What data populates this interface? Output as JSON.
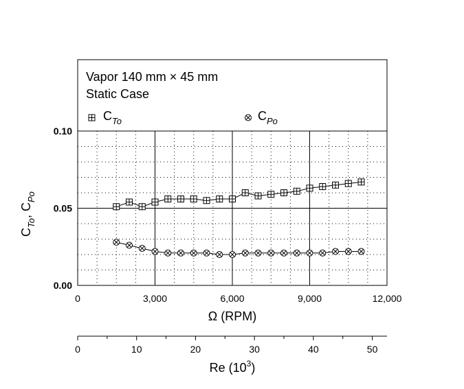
{
  "chart_data": {
    "type": "scatter",
    "legend_text": {
      "line1": "Vapor 140 mm × 45 mm",
      "line2": "Static Case"
    },
    "series": [
      {
        "base": "C",
        "sub": "To",
        "marker": "square-plus",
        "x": [
          1500,
          2000,
          2500,
          3000,
          3500,
          4000,
          4500,
          5000,
          5500,
          6000,
          6500,
          7000,
          7500,
          8000,
          8500,
          9000,
          9500,
          10000,
          10500,
          11000
        ],
        "y": [
          0.051,
          0.054,
          0.051,
          0.054,
          0.056,
          0.056,
          0.056,
          0.055,
          0.056,
          0.056,
          0.06,
          0.058,
          0.059,
          0.06,
          0.061,
          0.063,
          0.064,
          0.065,
          0.066,
          0.067
        ]
      },
      {
        "base": "C",
        "sub": "Po",
        "marker": "circle-x",
        "x": [
          1500,
          2000,
          2500,
          3000,
          3500,
          4000,
          4500,
          5000,
          5500,
          6000,
          6500,
          7000,
          7500,
          8000,
          8500,
          9000,
          9500,
          10000,
          10500,
          11000
        ],
        "y": [
          0.028,
          0.026,
          0.024,
          0.022,
          0.021,
          0.021,
          0.021,
          0.021,
          0.02,
          0.02,
          0.021,
          0.021,
          0.021,
          0.021,
          0.021,
          0.021,
          0.021,
          0.022,
          0.022,
          0.022
        ]
      }
    ],
    "xlabel": "Ω (RPM)",
    "xlim": [
      0,
      12000
    ],
    "x_ticks": [
      "0",
      "3,000",
      "6,000",
      "9,000",
      "12,000"
    ],
    "ylabel_base": "C",
    "ylabel_sub1": "To",
    "ylabel_sub2": "Po",
    "ylim": [
      0,
      0.1
    ],
    "y_ticks": [
      "0.00",
      "0.05",
      "0.10"
    ],
    "secondary_axis": {
      "label_base": "Re (10",
      "label_exp": "3",
      "label_close": ")",
      "lim": [
        0,
        52.5
      ],
      "ticks": [
        "0",
        "10",
        "20",
        "30",
        "40",
        "50"
      ]
    },
    "grid": true
  }
}
